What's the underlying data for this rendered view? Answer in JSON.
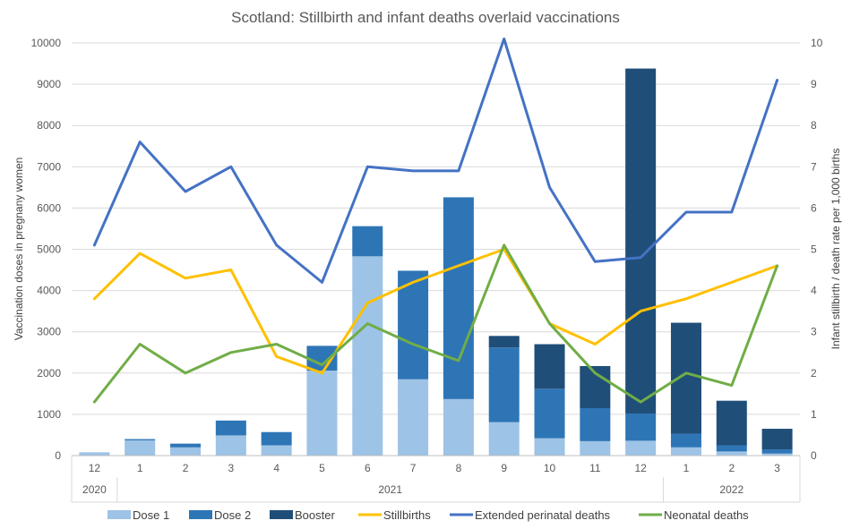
{
  "chart_data": {
    "type": "bar",
    "title": "Scotland: Stillbirth and infant deaths overlaid vaccinations",
    "ylabel": "Vaccination doses in pregnany women",
    "y2label": "Infant stillbirth / death rate per 1,000 births",
    "ylim": [
      0,
      10000
    ],
    "y2lim": [
      0,
      10
    ],
    "y_ticks": [
      "0",
      "1000",
      "2000",
      "3000",
      "4000",
      "5000",
      "6000",
      "7000",
      "8000",
      "9000",
      "10000"
    ],
    "y2_ticks": [
      "0",
      "1",
      "2",
      "3",
      "4",
      "5",
      "6",
      "7",
      "8",
      "9",
      "10"
    ],
    "categories": [
      "12",
      "1",
      "2",
      "3",
      "4",
      "5",
      "6",
      "7",
      "8",
      "9",
      "10",
      "11",
      "12",
      "1",
      "2",
      "3"
    ],
    "year_groups": [
      {
        "label": "2020",
        "start": 0,
        "end": 0
      },
      {
        "label": "2021",
        "start": 1,
        "end": 12
      },
      {
        "label": "2022",
        "start": 13,
        "end": 15
      }
    ],
    "bar_series": [
      {
        "name": "Dose 1",
        "color": "#9dc3e6",
        "values": [
          80,
          370,
          200,
          490,
          250,
          2060,
          4830,
          1850,
          1370,
          810,
          420,
          350,
          360,
          200,
          100,
          50
        ]
      },
      {
        "name": "Dose 2",
        "color": "#2e75b6",
        "values": [
          0,
          30,
          90,
          360,
          320,
          600,
          730,
          2630,
          4890,
          1810,
          1200,
          800,
          660,
          330,
          150,
          100
        ]
      },
      {
        "name": "Booster",
        "color": "#1f4e79",
        "values": [
          0,
          0,
          0,
          0,
          0,
          0,
          0,
          0,
          0,
          280,
          1080,
          1020,
          8360,
          2690,
          1080,
          500
        ]
      }
    ],
    "line_series": [
      {
        "name": "Stillbirths",
        "color": "#ffc000",
        "values": [
          3.8,
          4.9,
          4.3,
          4.5,
          2.4,
          2.0,
          3.7,
          4.2,
          4.6,
          5.0,
          3.2,
          2.7,
          3.5,
          3.8,
          4.2,
          4.6
        ]
      },
      {
        "name": "Extended perinatal deaths",
        "color": "#4472c4",
        "values": [
          5.1,
          7.6,
          6.4,
          7.0,
          5.1,
          4.2,
          7.0,
          6.9,
          6.9,
          10.1,
          6.5,
          4.7,
          4.8,
          5.9,
          5.9,
          9.1
        ]
      },
      {
        "name": "Neonatal deaths",
        "color": "#70ad47",
        "values": [
          1.3,
          2.7,
          2.0,
          2.5,
          2.7,
          2.2,
          3.2,
          2.7,
          2.3,
          5.1,
          3.2,
          2.0,
          1.3,
          2.0,
          1.7,
          4.6
        ]
      }
    ],
    "legend_position": "bottom",
    "grid": true
  }
}
